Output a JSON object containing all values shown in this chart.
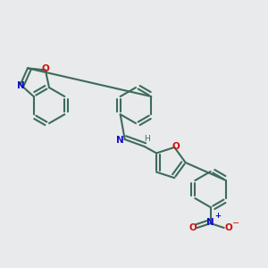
{
  "bg_color": "#e8eaeb",
  "bond_color": "#3d6b5a",
  "n_color": "#1010cc",
  "o_color": "#cc1010",
  "lw": 1.5,
  "dbo": 4.0,
  "figsize": [
    3.0,
    3.0
  ],
  "dpi": 100,
  "xlim": [
    0,
    300
  ],
  "ylim": [
    0,
    300
  ]
}
